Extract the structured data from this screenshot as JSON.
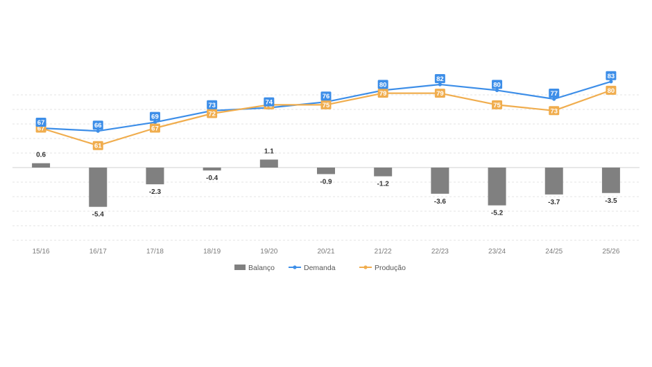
{
  "chart_data": {
    "type": "bar",
    "categories": [
      "15/16",
      "16/17",
      "17/18",
      "18/19",
      "19/20",
      "20/21",
      "21/22",
      "22/23",
      "23/24",
      "24/25",
      "25/26"
    ],
    "series": [
      {
        "name": "Balanço",
        "kind": "bar",
        "color": "#808080",
        "values": [
          0.6,
          -5.4,
          -2.3,
          -0.4,
          1.1,
          -0.9,
          -1.2,
          -3.6,
          -5.2,
          -3.7,
          -3.5
        ]
      },
      {
        "name": "Demanda",
        "kind": "line",
        "color": "#3d8ee8",
        "values": [
          67,
          66,
          69,
          73,
          74,
          76,
          80,
          82,
          80,
          77,
          83
        ]
      },
      {
        "name": "Produção",
        "kind": "line",
        "color": "#f0ad4e",
        "values": [
          67,
          61,
          67,
          72,
          75,
          75,
          79,
          79,
          75,
          73,
          80
        ]
      }
    ],
    "legend_position": "bottom-center",
    "grid": "horizontal-dashed"
  }
}
